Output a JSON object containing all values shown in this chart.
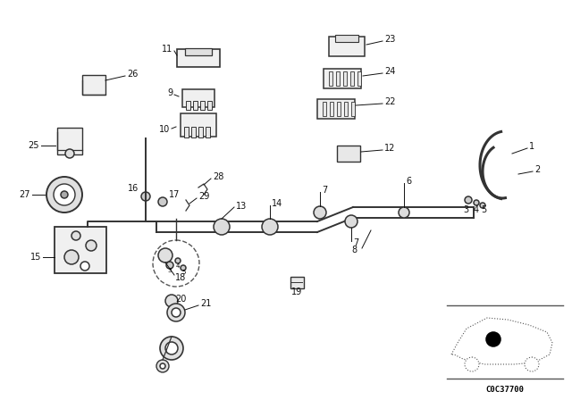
{
  "bg_color": "#ffffff",
  "fg_color": "#222222",
  "fig_width": 6.4,
  "fig_height": 4.48,
  "dpi": 100,
  "watermark": "C0C37700",
  "pipe_color": "#333333",
  "label_color": "#111111",
  "lw_pipe": 1.4,
  "lw_comp": 1.1,
  "lw_line": 0.7,
  "font_label": 7.0
}
